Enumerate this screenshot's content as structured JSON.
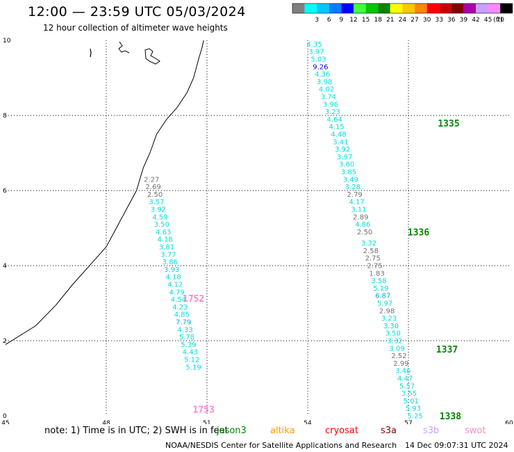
{
  "header": {
    "title": "12:00 — 23:59 UTC 05/03/2024",
    "subtitle": "12 hour collection of altimeter wave heights"
  },
  "legend": {
    "unit": "(ft)",
    "bins": [
      {
        "label": "",
        "color": "#808080"
      },
      {
        "label": "3",
        "color": "#00ffff"
      },
      {
        "label": "6",
        "color": "#00c8ff"
      },
      {
        "label": "9",
        "color": "#0080ff"
      },
      {
        "label": "12",
        "color": "#0000ff"
      },
      {
        "label": "15",
        "color": "#40ff40"
      },
      {
        "label": "18",
        "color": "#00c800"
      },
      {
        "label": "21",
        "color": "#008800"
      },
      {
        "label": "24",
        "color": "#ffff00"
      },
      {
        "label": "27",
        "color": "#ffc800"
      },
      {
        "label": "30",
        "color": "#ff8800"
      },
      {
        "label": "33",
        "color": "#ff0000"
      },
      {
        "label": "36",
        "color": "#c80000"
      },
      {
        "label": "39",
        "color": "#880000"
      },
      {
        "label": "42",
        "color": "#aa00aa"
      },
      {
        "label": "45",
        "color": "#c8a0ff"
      },
      {
        "label": "70",
        "color": "#ff88ff"
      },
      {
        "label": "",
        "color": "#000000"
      }
    ]
  },
  "map": {
    "lon_ticks": [
      "45",
      "48",
      "51",
      "54",
      "57",
      "60"
    ],
    "lat_ticks": [
      "0",
      "2",
      "4",
      "6",
      "8",
      "10"
    ],
    "lon_range": [
      45,
      60
    ],
    "lat_range": [
      0,
      10
    ]
  },
  "tracks": [
    {
      "time_label": "1335",
      "time_label_color": "#008800",
      "time_label_at": [
        58.2,
        7.8
      ],
      "points": [
        {
          "v": "4.35",
          "lon": 54.2,
          "lat": 9.9,
          "c": "#00dddd"
        },
        {
          "v": "3.97",
          "lon": 54.26,
          "lat": 9.7,
          "c": "#00dddd"
        },
        {
          "v": "5.03",
          "lon": 54.32,
          "lat": 9.5,
          "c": "#00dddd"
        },
        {
          "v": "9.26",
          "lon": 54.38,
          "lat": 9.3,
          "c": "#0000dd"
        },
        {
          "v": "4.36",
          "lon": 54.44,
          "lat": 9.1,
          "c": "#00dddd"
        },
        {
          "v": "3.98",
          "lon": 54.5,
          "lat": 8.9,
          "c": "#00dddd"
        },
        {
          "v": "4.02",
          "lon": 54.56,
          "lat": 8.7,
          "c": "#00dddd"
        },
        {
          "v": "3.74",
          "lon": 54.62,
          "lat": 8.5,
          "c": "#00dddd"
        },
        {
          "v": "3.96",
          "lon": 54.68,
          "lat": 8.3,
          "c": "#00dddd"
        },
        {
          "v": "3.23",
          "lon": 54.74,
          "lat": 8.1,
          "c": "#00dddd"
        },
        {
          "v": "4.64",
          "lon": 54.8,
          "lat": 7.9,
          "c": "#00dddd"
        },
        {
          "v": "4.15",
          "lon": 54.86,
          "lat": 7.7,
          "c": "#00dddd"
        },
        {
          "v": "4.48",
          "lon": 54.92,
          "lat": 7.5,
          "c": "#00dddd"
        },
        {
          "v": "3.41",
          "lon": 54.98,
          "lat": 7.3,
          "c": "#00dddd"
        },
        {
          "v": "3.92",
          "lon": 55.04,
          "lat": 7.1,
          "c": "#00dddd"
        },
        {
          "v": "3.97",
          "lon": 55.1,
          "lat": 6.9,
          "c": "#00dddd"
        },
        {
          "v": "3.60",
          "lon": 55.16,
          "lat": 6.7,
          "c": "#00dddd"
        },
        {
          "v": "3.85",
          "lon": 55.22,
          "lat": 6.5,
          "c": "#00dddd"
        },
        {
          "v": "3.49",
          "lon": 55.28,
          "lat": 6.3,
          "c": "#00dddd"
        },
        {
          "v": "3.28",
          "lon": 55.34,
          "lat": 6.1,
          "c": "#00dddd"
        },
        {
          "v": "2.79",
          "lon": 55.4,
          "lat": 5.9,
          "c": "#707070"
        },
        {
          "v": "4.17",
          "lon": 55.46,
          "lat": 5.7,
          "c": "#00dddd"
        },
        {
          "v": "3.11",
          "lon": 55.52,
          "lat": 5.5,
          "c": "#00dddd"
        },
        {
          "v": "2.89",
          "lon": 55.58,
          "lat": 5.3,
          "c": "#707070"
        },
        {
          "v": "4.86",
          "lon": 55.64,
          "lat": 5.1,
          "c": "#00dddd"
        },
        {
          "v": "2.50",
          "lon": 55.7,
          "lat": 4.9,
          "c": "#707070"
        }
      ]
    },
    {
      "time_label": "1336",
      "time_label_color": "#008800",
      "time_label_at": [
        57.3,
        4.9
      ],
      "points": [
        {
          "v": "3.32",
          "lon": 55.82,
          "lat": 4.6,
          "c": "#00dddd"
        },
        {
          "v": "2.58",
          "lon": 55.88,
          "lat": 4.4,
          "c": "#707070"
        },
        {
          "v": "2.75",
          "lon": 55.94,
          "lat": 4.2,
          "c": "#707070"
        },
        {
          "v": "2.75",
          "lon": 56.0,
          "lat": 4.0,
          "c": "#707070"
        },
        {
          "v": "1.83",
          "lon": 56.06,
          "lat": 3.8,
          "c": "#707070"
        },
        {
          "v": "3.58",
          "lon": 56.12,
          "lat": 3.6,
          "c": "#00dddd"
        },
        {
          "v": "5.19",
          "lon": 56.18,
          "lat": 3.4,
          "c": "#00dddd"
        },
        {
          "v": "6.87",
          "lon": 56.24,
          "lat": 3.2,
          "c": "#00aadd"
        },
        {
          "v": "5.97",
          "lon": 56.3,
          "lat": 3.0,
          "c": "#00dddd"
        },
        {
          "v": "2.98",
          "lon": 56.36,
          "lat": 2.8,
          "c": "#707070"
        },
        {
          "v": "3.23",
          "lon": 56.42,
          "lat": 2.6,
          "c": "#00dddd"
        },
        {
          "v": "3.30",
          "lon": 56.48,
          "lat": 2.4,
          "c": "#00dddd"
        },
        {
          "v": "3.50",
          "lon": 56.54,
          "lat": 2.2,
          "c": "#00dddd"
        },
        {
          "v": "3.32",
          "lon": 56.6,
          "lat": 2.0,
          "c": "#00dddd"
        },
        {
          "v": "3.09",
          "lon": 56.66,
          "lat": 1.8,
          "c": "#00dddd"
        }
      ]
    },
    {
      "time_label": "1337",
      "time_label_color": "#008800",
      "time_label_at": [
        58.15,
        1.78
      ],
      "points": [
        {
          "v": "2.52",
          "lon": 56.72,
          "lat": 1.6,
          "c": "#707070"
        },
        {
          "v": "2.99",
          "lon": 56.78,
          "lat": 1.4,
          "c": "#707070"
        },
        {
          "v": "3.46",
          "lon": 56.84,
          "lat": 1.2,
          "c": "#00dddd"
        },
        {
          "v": "4.47",
          "lon": 56.9,
          "lat": 1.0,
          "c": "#00dddd"
        },
        {
          "v": "5.57",
          "lon": 56.96,
          "lat": 0.8,
          "c": "#00dddd"
        },
        {
          "v": "3.55",
          "lon": 57.02,
          "lat": 0.6,
          "c": "#00dddd"
        },
        {
          "v": "5.01",
          "lon": 57.08,
          "lat": 0.4,
          "c": "#00dddd"
        },
        {
          "v": "5.93",
          "lon": 57.14,
          "lat": 0.2,
          "c": "#00dddd"
        },
        {
          "v": "5.25",
          "lon": 57.2,
          "lat": 0.0,
          "c": "#00dddd"
        }
      ]
    },
    {
      "time_label": "1338",
      "time_label_color": "#008800",
      "time_label_at": [
        58.25,
        0.0
      ],
      "points": []
    },
    {
      "time_label": "1752",
      "time_label_color": "#ff88cc",
      "time_label_at": [
        50.6,
        3.13
      ],
      "points": [
        {
          "v": "2.27",
          "lon": 49.35,
          "lat": 6.3,
          "c": "#707070"
        },
        {
          "v": "2.69",
          "lon": 49.4,
          "lat": 6.1,
          "c": "#707070"
        },
        {
          "v": "2.50",
          "lon": 49.45,
          "lat": 5.9,
          "c": "#707070"
        },
        {
          "v": "3.57",
          "lon": 49.5,
          "lat": 5.7,
          "c": "#00dddd"
        },
        {
          "v": "3.92",
          "lon": 49.55,
          "lat": 5.5,
          "c": "#00dddd"
        },
        {
          "v": "4.59",
          "lon": 49.6,
          "lat": 5.3,
          "c": "#00dddd"
        },
        {
          "v": "3.50",
          "lon": 49.65,
          "lat": 5.1,
          "c": "#00dddd"
        },
        {
          "v": "4.63",
          "lon": 49.7,
          "lat": 4.9,
          "c": "#00dddd"
        },
        {
          "v": "4.18",
          "lon": 49.75,
          "lat": 4.7,
          "c": "#00dddd"
        },
        {
          "v": "3.81",
          "lon": 49.8,
          "lat": 4.5,
          "c": "#00dddd"
        },
        {
          "v": "3.77",
          "lon": 49.85,
          "lat": 4.3,
          "c": "#00dddd"
        },
        {
          "v": "3.86",
          "lon": 49.9,
          "lat": 4.1,
          "c": "#00dddd"
        },
        {
          "v": "3.93",
          "lon": 49.95,
          "lat": 3.9,
          "c": "#00dddd"
        },
        {
          "v": "4.18",
          "lon": 50.0,
          "lat": 3.7,
          "c": "#00dddd"
        },
        {
          "v": "4.12",
          "lon": 50.05,
          "lat": 3.5,
          "c": "#00dddd"
        },
        {
          "v": "4.79",
          "lon": 50.1,
          "lat": 3.3,
          "c": "#00dddd"
        },
        {
          "v": "4.54",
          "lon": 50.15,
          "lat": 3.1,
          "c": "#00dddd"
        },
        {
          "v": "4.23",
          "lon": 50.2,
          "lat": 2.9,
          "c": "#00dddd"
        },
        {
          "v": "4.85",
          "lon": 50.25,
          "lat": 2.7,
          "c": "#00dddd"
        },
        {
          "v": "7.79",
          "lon": 50.3,
          "lat": 2.5,
          "c": "#00aadd"
        },
        {
          "v": "4.33",
          "lon": 50.35,
          "lat": 2.3,
          "c": "#00dddd"
        },
        {
          "v": "5.78",
          "lon": 50.4,
          "lat": 2.1,
          "c": "#00dddd"
        },
        {
          "v": "5.39",
          "lon": 50.45,
          "lat": 1.9,
          "c": "#00dddd"
        },
        {
          "v": "4.43",
          "lon": 50.5,
          "lat": 1.7,
          "c": "#00dddd"
        },
        {
          "v": "5.12",
          "lon": 50.55,
          "lat": 1.5,
          "c": "#00dddd"
        },
        {
          "v": "5.19",
          "lon": 50.6,
          "lat": 1.3,
          "c": "#00dddd"
        }
      ]
    },
    {
      "time_label": "1753",
      "time_label_color": "#ff88cc",
      "time_label_at": [
        50.9,
        0.18
      ],
      "points": []
    }
  ],
  "footer": {
    "note": "note: 1) Time is in UTC; 2) SWH is in feet",
    "satellites": [
      {
        "name": "jason3",
        "color": "#008800"
      },
      {
        "name": "altika",
        "color": "#ff9900"
      },
      {
        "name": "cryosat",
        "color": "#ff0000"
      },
      {
        "name": "s3a",
        "color": "#880000"
      },
      {
        "name": "s3b",
        "color": "#c8a0ff"
      },
      {
        "name": "swot",
        "color": "#ff88cc"
      }
    ],
    "credit": "NOAA/NESDIS Center for Satellite Applications and Research",
    "timestamp": "14 Dec 09:07:31 UTC 2024"
  }
}
